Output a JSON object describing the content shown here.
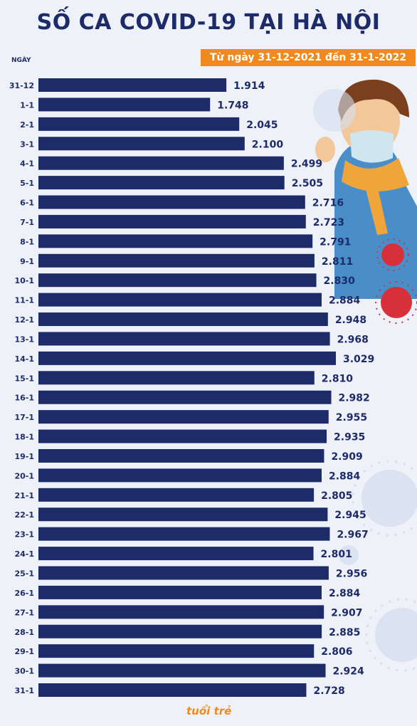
{
  "title": "SỐ CA COVID-19 TẠI HÀ NỘI",
  "subtitle": "Từ ngày 31-12-2021 đến 31-1-2022",
  "ngay_label": "NGÀY",
  "logo_text": "tuổi trẻ",
  "colors": {
    "bar": "#1e2b69",
    "text": "#1e2b69",
    "accent": "#f18a1e"
  },
  "chart_data": {
    "type": "bar",
    "orientation": "horizontal",
    "categories": [
      "31-12",
      "1-1",
      "2-1",
      "3-1",
      "4-1",
      "5-1",
      "6-1",
      "7-1",
      "8-1",
      "9-1",
      "10-1",
      "11-1",
      "12-1",
      "13-1",
      "14-1",
      "15-1",
      "16-1",
      "17-1",
      "18-1",
      "19-1",
      "20-1",
      "21-1",
      "22-1",
      "23-1",
      "24-1",
      "25-1",
      "26-1",
      "27-1",
      "28-1",
      "29-1",
      "30-1",
      "31-1"
    ],
    "values": [
      1914,
      1748,
      2045,
      2100,
      2499,
      2505,
      2716,
      2723,
      2791,
      2811,
      2830,
      2884,
      2948,
      2968,
      3029,
      2810,
      2982,
      2955,
      2935,
      2909,
      2884,
      2805,
      2945,
      2967,
      2801,
      2956,
      2884,
      2907,
      2885,
      2806,
      2924,
      2728
    ],
    "labels": [
      "1.914",
      "1.748",
      "2.045",
      "2.100",
      "2.499",
      "2.505",
      "2.716",
      "2.723",
      "2.791",
      "2.811",
      "2.830",
      "2.884",
      "2.948",
      "2.968",
      "3.029",
      "2.810",
      "2.982",
      "2.955",
      "2.935",
      "2.909",
      "2.884",
      "2.805",
      "2.945",
      "2.967",
      "2.801",
      "2.956",
      "2.884",
      "2.907",
      "2.885",
      "2.806",
      "2.924",
      "2.728"
    ],
    "xlim": [
      0,
      3029
    ],
    "grid": false,
    "legend": "none"
  }
}
